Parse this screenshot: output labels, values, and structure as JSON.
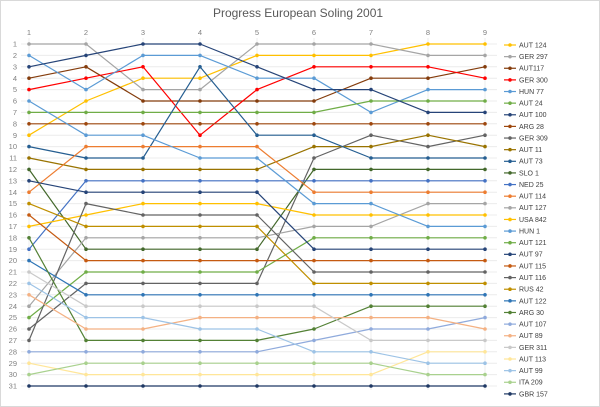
{
  "title": "Progress European Soling 2001",
  "chart_data": {
    "type": "line",
    "title": "Progress European Soling 2001",
    "xlabel": "",
    "ylabel": "",
    "x": [
      1,
      2,
      3,
      4,
      5,
      6,
      7,
      8,
      9
    ],
    "x_axis_position": "top",
    "y_axis": {
      "min": 1,
      "max": 31,
      "inverted": true,
      "tick_step": 1
    },
    "grid": true,
    "legend_position": "right",
    "marker": "dot",
    "axis_label_color": "#808080",
    "grid_color": "#ececec",
    "title_color": "#595959",
    "legend_text_color": "#404040",
    "series": [
      {
        "name": "AUT 124",
        "color": "#FFC000",
        "positions": [
          9,
          6,
          4,
          4,
          2,
          2,
          2,
          1,
          1
        ]
      },
      {
        "name": "GER 297",
        "color": "#A5A5A5",
        "positions": [
          1,
          1,
          5,
          5,
          1,
          1,
          1,
          2,
          2
        ]
      },
      {
        "name": "AUT117",
        "color": "#843C0C",
        "positions": [
          4,
          3,
          6,
          6,
          6,
          6,
          4,
          4,
          3
        ]
      },
      {
        "name": "GER 300",
        "color": "#FF0000",
        "positions": [
          5,
          4,
          3,
          9,
          5,
          3,
          3,
          3,
          4
        ]
      },
      {
        "name": "HUN 77",
        "color": "#5B9BD5",
        "positions": [
          2,
          5,
          2,
          2,
          4,
          4,
          7,
          5,
          5
        ]
      },
      {
        "name": "AUT 24",
        "color": "#70AD47",
        "positions": [
          7,
          7,
          7,
          7,
          7,
          7,
          6,
          6,
          6
        ]
      },
      {
        "name": "AUT 100",
        "color": "#264478",
        "positions": [
          3,
          2,
          1,
          1,
          3,
          5,
          5,
          7,
          7
        ]
      },
      {
        "name": "ARG 28",
        "color": "#9E480E",
        "positions": [
          8,
          8,
          8,
          8,
          8,
          8,
          8,
          8,
          8
        ]
      },
      {
        "name": "GER 309",
        "color": "#636363",
        "positions": [
          26,
          22,
          22,
          22,
          22,
          11,
          9,
          10,
          9
        ]
      },
      {
        "name": "AUT 11",
        "color": "#997300",
        "positions": [
          11,
          12,
          12,
          12,
          12,
          10,
          10,
          9,
          10
        ]
      },
      {
        "name": "AUT 73",
        "color": "#255E91",
        "positions": [
          10,
          11,
          11,
          3,
          9,
          9,
          11,
          11,
          11
        ]
      },
      {
        "name": "SLO 1",
        "color": "#43682B",
        "positions": [
          12,
          19,
          19,
          19,
          19,
          12,
          12,
          12,
          12
        ]
      },
      {
        "name": "NED 25",
        "color": "#4472C4",
        "positions": [
          19,
          13,
          13,
          13,
          13,
          13,
          13,
          13,
          13
        ]
      },
      {
        "name": "AUT 114",
        "color": "#ED7D31",
        "positions": [
          14,
          10,
          10,
          10,
          10,
          14,
          14,
          14,
          14
        ]
      },
      {
        "name": "AUT 127",
        "color": "#A5A5A5",
        "positions": [
          24,
          18,
          18,
          18,
          18,
          17,
          17,
          15,
          15
        ]
      },
      {
        "name": "USA 842",
        "color": "#FFC000",
        "positions": [
          17,
          16,
          15,
          15,
          15,
          16,
          16,
          16,
          16
        ]
      },
      {
        "name": "HUN 1",
        "color": "#5B9BD5",
        "positions": [
          6,
          9,
          9,
          11,
          11,
          15,
          15,
          17,
          17
        ]
      },
      {
        "name": "AUT 121",
        "color": "#70AD47",
        "positions": [
          25,
          21,
          21,
          21,
          21,
          18,
          18,
          18,
          18
        ]
      },
      {
        "name": "AUT 97",
        "color": "#264478",
        "positions": [
          13,
          14,
          14,
          14,
          14,
          19,
          19,
          19,
          19
        ]
      },
      {
        "name": "AUT 115",
        "color": "#C55A11",
        "positions": [
          16,
          20,
          20,
          20,
          20,
          20,
          20,
          20,
          20
        ]
      },
      {
        "name": "AUT 116",
        "color": "#636363",
        "positions": [
          27,
          15,
          16,
          16,
          16,
          21,
          21,
          21,
          21
        ]
      },
      {
        "name": "RUS 42",
        "color": "#BF8F00",
        "positions": [
          15,
          17,
          17,
          17,
          17,
          22,
          22,
          22,
          22
        ]
      },
      {
        "name": "AUT 122",
        "color": "#2E75B6",
        "positions": [
          20,
          23,
          23,
          23,
          23,
          23,
          23,
          23,
          23
        ]
      },
      {
        "name": "ARG 30",
        "color": "#538135",
        "positions": [
          18,
          27,
          27,
          27,
          27,
          26,
          24,
          24,
          24
        ]
      },
      {
        "name": "AUT 107",
        "color": "#8FAADC",
        "positions": [
          28,
          28,
          28,
          28,
          28,
          27,
          26,
          26,
          25
        ]
      },
      {
        "name": "AUT 89",
        "color": "#F4B183",
        "positions": [
          23,
          26,
          26,
          25,
          25,
          25,
          25,
          25,
          26
        ]
      },
      {
        "name": "GER 311",
        "color": "#C9C9C9",
        "positions": [
          21,
          24,
          24,
          24,
          24,
          24,
          27,
          27,
          27
        ]
      },
      {
        "name": "AUT 113",
        "color": "#FFE699",
        "positions": [
          29,
          30,
          30,
          30,
          30,
          30,
          30,
          28,
          28
        ]
      },
      {
        "name": "AUT 99",
        "color": "#9DC3E6",
        "positions": [
          22,
          25,
          25,
          26,
          26,
          28,
          28,
          29,
          29
        ]
      },
      {
        "name": "ITA 209",
        "color": "#A9D18E",
        "positions": [
          30,
          29,
          29,
          29,
          29,
          29,
          29,
          30,
          30
        ]
      },
      {
        "name": "GBR 157",
        "color": "#1F3864",
        "positions": [
          31,
          31,
          31,
          31,
          31,
          31,
          31,
          31,
          31
        ]
      }
    ]
  }
}
